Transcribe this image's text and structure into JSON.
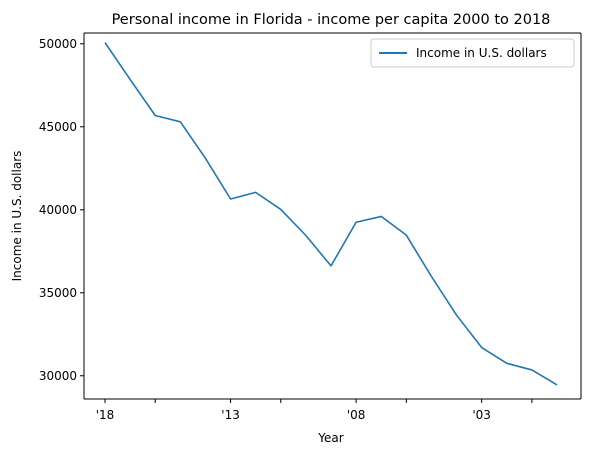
{
  "chart_data": {
    "type": "line",
    "title": "Personal income in Florida - income per capita 2000 to 2018",
    "xlabel": "Year",
    "ylabel": "Income in U.S. dollars",
    "x": [
      2018,
      2017,
      2016,
      2015,
      2014,
      2013,
      2012,
      2011,
      2010,
      2009,
      2008,
      2007,
      2006,
      2005,
      2004,
      2003,
      2002,
      2001,
      2000
    ],
    "x_ticks": [
      2018,
      2016,
      2013,
      2011,
      2008,
      2006,
      2003,
      2001
    ],
    "x_tick_labels": [
      "'18",
      "",
      "'13",
      "",
      "'08",
      "",
      "'03",
      ""
    ],
    "y_ticks": [
      30000,
      35000,
      40000,
      45000,
      50000
    ],
    "ylim": [
      28600,
      50650
    ],
    "grid": false,
    "legend_position": "top-right",
    "series": [
      {
        "name": "Income in U.S. dollars",
        "color": "#1f77b4",
        "values": [
          50070,
          47850,
          45680,
          45300,
          43100,
          40650,
          41050,
          40020,
          38450,
          36620,
          39250,
          39600,
          38470,
          35980,
          33650,
          31700,
          30750,
          30350,
          29450
        ]
      }
    ]
  }
}
